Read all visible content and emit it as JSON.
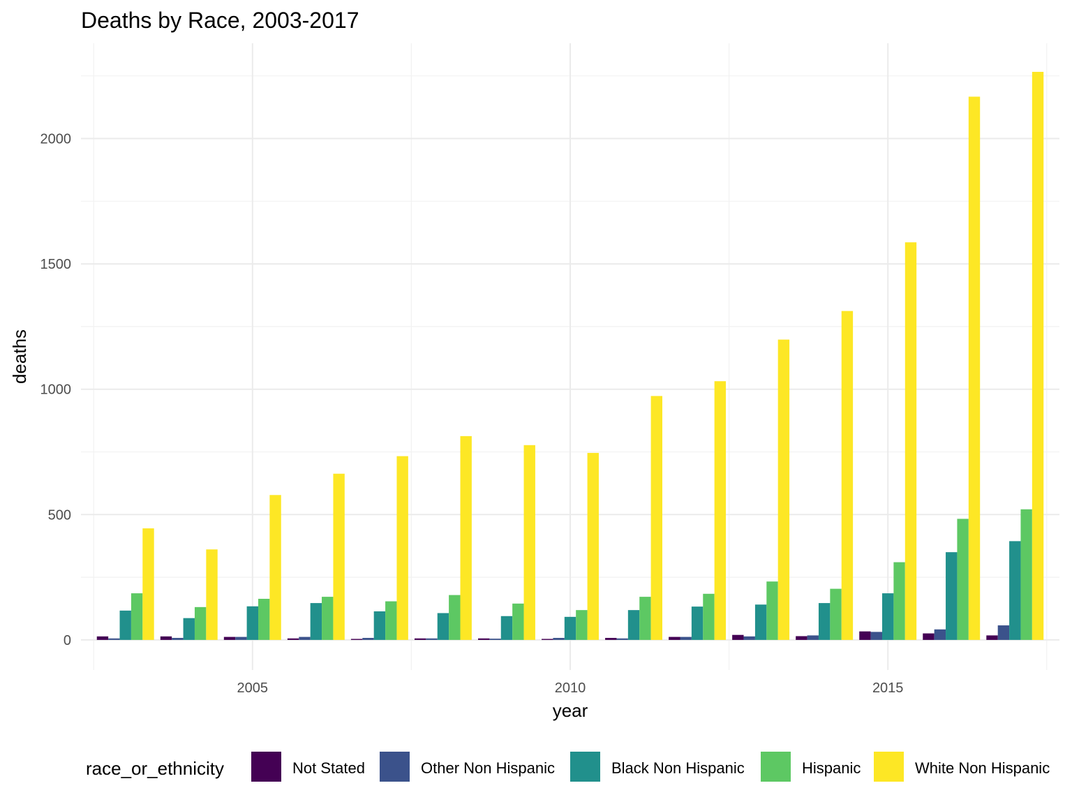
{
  "chart_data": {
    "type": "bar",
    "title": "Deaths by Race, 2003-2017",
    "xlabel": "year",
    "ylabel": "deaths",
    "x": [
      2003,
      2004,
      2005,
      2006,
      2007,
      2008,
      2009,
      2010,
      2011,
      2012,
      2013,
      2014,
      2015,
      2016,
      2017
    ],
    "xlim": [
      2002.3,
      2017.7
    ],
    "ylim": [
      -120,
      2380
    ],
    "x_ticks": [
      2005,
      2010,
      2015
    ],
    "x_tick_labels": [
      "2005",
      "2010",
      "2015"
    ],
    "y_ticks": [
      0,
      500,
      1000,
      1500,
      2000
    ],
    "y_tick_labels": [
      "0",
      "500",
      "1000",
      "1500",
      "2000"
    ],
    "grid": true,
    "legend": {
      "title": "race_or_ethnicity",
      "position": "bottom"
    },
    "series": [
      {
        "name": "Not Stated",
        "color": "#440154",
        "values": [
          14,
          14,
          12,
          6,
          4,
          6,
          6,
          4,
          8,
          12,
          20,
          15,
          34,
          26,
          18
        ]
      },
      {
        "name": "Other Non Hispanic",
        "color": "#3B528B",
        "values": [
          6,
          8,
          12,
          12,
          8,
          6,
          5,
          8,
          6,
          12,
          14,
          18,
          32,
          42,
          58
        ]
      },
      {
        "name": "Black Non Hispanic",
        "color": "#21908C",
        "values": [
          117,
          87,
          134,
          147,
          114,
          107,
          95,
          92,
          119,
          133,
          141,
          147,
          186,
          350,
          394
        ]
      },
      {
        "name": "Hispanic",
        "color": "#5DC863",
        "values": [
          186,
          131,
          164,
          172,
          154,
          179,
          145,
          119,
          172,
          184,
          233,
          204,
          310,
          483,
          521
        ]
      },
      {
        "name": "White Non Hispanic",
        "color": "#FDE725",
        "values": [
          445,
          361,
          578,
          663,
          733,
          813,
          777,
          746,
          973,
          1032,
          1198,
          1312,
          1586,
          2167,
          2266
        ]
      }
    ]
  }
}
